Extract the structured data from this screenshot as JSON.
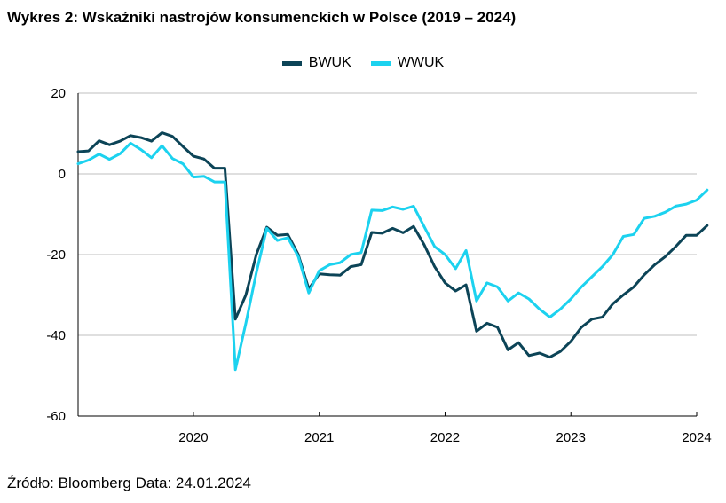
{
  "title": "Wykres 2: Wskaźniki nastrojów konsumenckich w Polsce (2019 – 2024)",
  "source": "Źródło: Bloomberg Data: 24.01.2024",
  "chart_data": {
    "type": "line",
    "title": "Wykres 2: Wskaźniki nastrojów konsumenckich w Polsce (2019 – 2024)",
    "xlabel": "",
    "ylabel": "",
    "ylim": [
      -60,
      20
    ],
    "yticks": [
      20,
      0,
      -20,
      -40,
      -60
    ],
    "xticks": [
      "2020",
      "2021",
      "2022",
      "2023",
      "2024"
    ],
    "x_start": "2019-02",
    "x_end": "2024-01",
    "grid": "horizontal",
    "legend_position": "top-center",
    "series": [
      {
        "name": "BWUK",
        "color": "#0c4457",
        "values": [
          5.5,
          5.7,
          8.2,
          7.2,
          8.1,
          9.5,
          9.0,
          8.1,
          10.2,
          9.3,
          6.8,
          4.4,
          3.7,
          1.4,
          1.4,
          -36.0,
          -30.0,
          -20.0,
          -13.2,
          -15.2,
          -15.0,
          -20.0,
          -28.5,
          -24.8,
          -25.0,
          -25.1,
          -23.0,
          -22.5,
          -14.5,
          -14.7,
          -13.5,
          -14.6,
          -13.0,
          -17.5,
          -23.0,
          -27.0,
          -29.0,
          -27.5,
          -39.0,
          -37.0,
          -38.0,
          -43.6,
          -41.8,
          -45.0,
          -44.4,
          -45.4,
          -44.0,
          -41.5,
          -38.0,
          -36.0,
          -35.5,
          -32.2,
          -30.0,
          -28.0,
          -25.0,
          -22.5,
          -20.5,
          -18.0,
          -15.2,
          -15.2,
          -12.8
        ]
      },
      {
        "name": "WWUK",
        "color": "#1cd2ef",
        "values": [
          2.5,
          3.4,
          4.9,
          3.6,
          5.0,
          7.6,
          6.0,
          4.0,
          7.0,
          3.8,
          2.5,
          -0.8,
          -0.6,
          -2.0,
          -2.0,
          -48.5,
          -37.0,
          -24.5,
          -13.5,
          -16.5,
          -15.8,
          -20.5,
          -29.5,
          -24.0,
          -22.5,
          -22.0,
          -20.0,
          -19.5,
          -9.0,
          -9.1,
          -8.2,
          -8.8,
          -8.0,
          -13.0,
          -18.0,
          -20.0,
          -23.5,
          -19.0,
          -31.5,
          -27.0,
          -28.0,
          -31.5,
          -29.5,
          -31.0,
          -33.5,
          -35.5,
          -33.5,
          -31.0,
          -28.0,
          -25.5,
          -23.0,
          -20.0,
          -15.5,
          -15.0,
          -11.0,
          -10.5,
          -9.5,
          -8.0,
          -7.5,
          -6.5,
          -4.0
        ]
      }
    ]
  }
}
